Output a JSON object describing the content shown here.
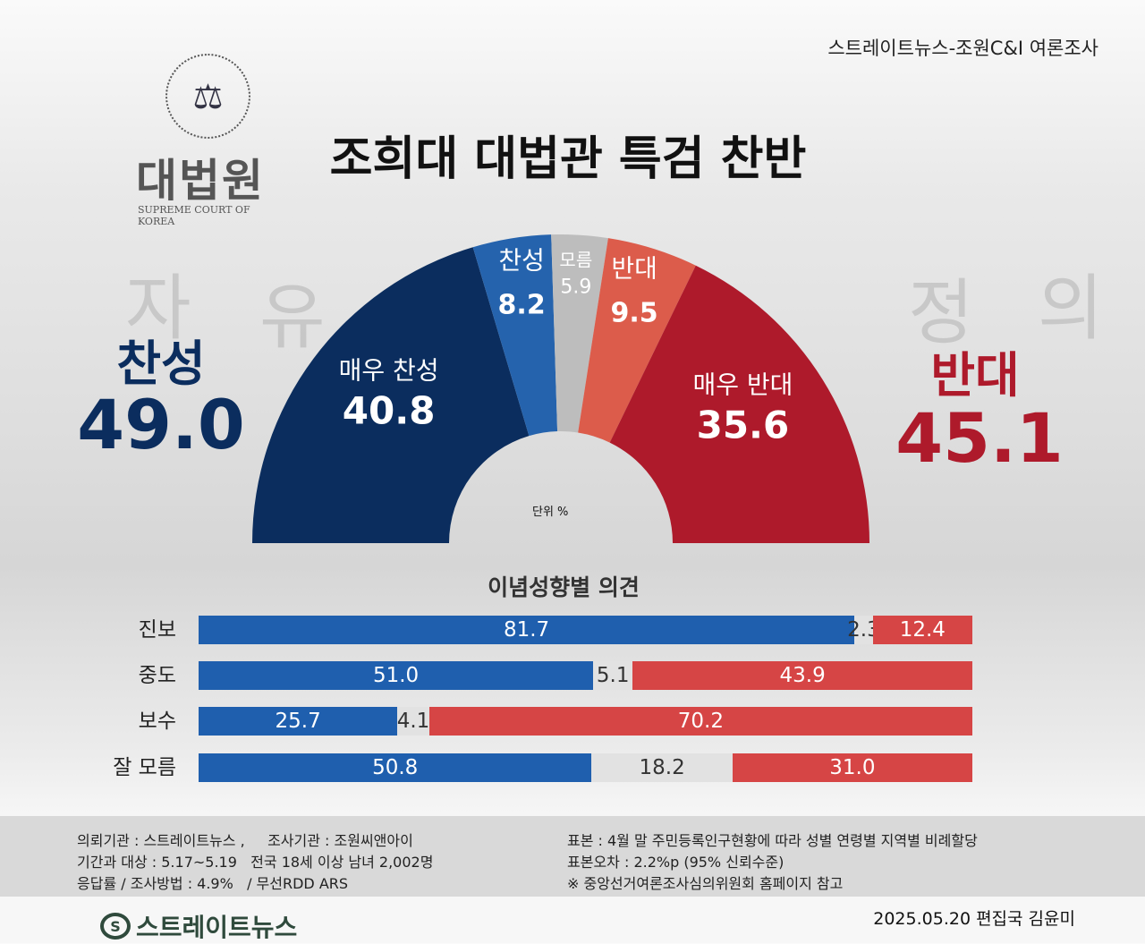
{
  "source": "스트레이트뉴스-조원C&I 여론조사",
  "logo": {
    "name_kr": "대법원",
    "name_en": "SUPREME COURT OF KOREA"
  },
  "title": "조희대 대법관 특검 찬반",
  "background_text": [
    "자",
    "유",
    "정",
    "의"
  ],
  "favor": {
    "label": "찬성",
    "total": "49.0"
  },
  "oppose": {
    "label": "반대",
    "total": "45.1"
  },
  "unit": "단위 %",
  "chart_data": [
    {
      "type": "pie",
      "subtype": "half-donut",
      "categories": [
        "매우 찬성",
        "찬성",
        "모름",
        "반대",
        "매우 반대"
      ],
      "values": [
        40.8,
        8.2,
        5.9,
        9.5,
        35.6
      ],
      "labels": [
        "40.8",
        "8.2",
        "5.9",
        "9.5",
        "35.6"
      ],
      "colors": [
        "#0b2d5e",
        "#2563ad",
        "#bdbdbd",
        "#dc5c4b",
        "#ae1a2b"
      ]
    },
    {
      "type": "bar",
      "orientation": "horizontal",
      "stacked": true,
      "title": "이념성향별 의견",
      "categories": [
        "진보",
        "중도",
        "보수",
        "잘 모름"
      ],
      "series": [
        {
          "values": [
            81.7,
            51.0,
            25.7,
            50.8
          ],
          "labels": [
            "81.7",
            "51.0",
            "25.7",
            "50.8"
          ],
          "color": "#1f5fae"
        },
        {
          "values": [
            2.3,
            5.1,
            4.1,
            18.2
          ],
          "labels": [
            "2.3",
            "5.1",
            "4.1",
            "18.2"
          ],
          "color": "#e2e2e2"
        },
        {
          "values": [
            12.4,
            43.9,
            70.2,
            31.0
          ],
          "labels": [
            "12.4",
            "43.9",
            "70.2",
            "31.0"
          ],
          "color": "#d64545"
        }
      ]
    }
  ],
  "footer": {
    "left": [
      "의뢰기관 : 스트레이트뉴스 ,     조사기관 : 조원씨앤아이",
      "기간과 대상 : 5.17~5.19   전국 18세 이상 남녀 2,002명",
      "응답률 / 조사방법 : 4.9%   / 무선RDD ARS"
    ],
    "right": [
      "표본 : 4월 말 주민등록인구현황에 따라 성별 연령별 지역별 비례할당",
      "표본오차 : 2.2%p (95% 신뢰수준)",
      "※ 중앙선거여론조사심의위원회 홈페이지 참고"
    ],
    "brand": "스트레이트뉴스",
    "credit": "2025.05.20 편집국 김윤미"
  }
}
